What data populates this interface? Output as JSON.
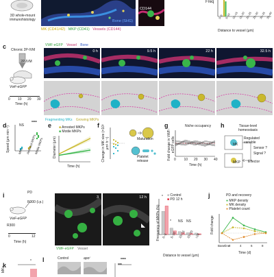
{
  "panel_a": {
    "label": "",
    "line1": "3D whole-mount",
    "line2": "immunohistology",
    "legend_bone": "Bone (SHG)",
    "legend_mk": "MK (CD41/42)",
    "legend_mkp": "MKP (CD41)",
    "legend_vessels": "Vessels (CD144)",
    "inset_label": "CD144",
    "chart_xlabel": "Distance to vessel (μm)",
    "chart_ylabel": "Freq",
    "chart_ticks": [
      "0–5",
      "5–10",
      "10–15",
      "15–20",
      "20–25",
      "25–30",
      "30–35",
      "35–40"
    ]
  },
  "panel_c": {
    "label": "c",
    "schematic_title": "Chronic 2P-IVM",
    "objective": "2P-IVM",
    "mouse": "VwF-eGFP",
    "time_ticks": [
      "0",
      "10",
      "20",
      "30"
    ],
    "time_unit": "Time (h)",
    "legend_vwf": "VWF-eGFP",
    "legend_vessel": "Vessel",
    "legend_bone": "Bone",
    "timepoints": [
      "0 h",
      "9.5 h",
      "22 h",
      "32.5 h"
    ],
    "legend_frag": "Fragmenting MKs",
    "legend_grow": "Growing MKPs"
  },
  "panel_d": {
    "label": "d",
    "ylabel": "Speed (μm min⁻¹)",
    "sig_ns": "NS",
    "sig_star": "****",
    "categories": [
      "MKs",
      "Arrested MKPs",
      "Motile MKPs"
    ]
  },
  "panel_e": {
    "label": "e",
    "legend1": "Arrested MKPs",
    "legend2": "Motile MKPs",
    "ylabel": "Diameter (μm)",
    "xlabel": "Time (h)"
  },
  "panel_f": {
    "label": "f",
    "ylabel": "Change in MK size (×10³ μm³ h⁻¹)",
    "maturation": "Maturation",
    "platelet": "Platelet",
    "release": "release"
  },
  "panel_g": {
    "label": "g",
    "title": "Niche occupancy",
    "ylabel": "Fold change in VWF-eGFP cells",
    "xlabel": "Time (h)",
    "xticks": [
      "0",
      "10",
      "20",
      "30",
      "40"
    ]
  },
  "panel_h": {
    "label": "h",
    "title1": "Tissue-level",
    "title2": "homeostasis",
    "regulated": "Regulated variable",
    "sensor": "Sensor ?",
    "signal": "Signal ?",
    "effector": "Effector",
    "mk": "MK",
    "mkp": "MKP"
  },
  "panel_i": {
    "label": "i",
    "pd": "PD",
    "r300": "R300 (i.p.)",
    "mouse": "VwF-eGFP",
    "r300_short": "R300",
    "time_ticks": [
      "0",
      "12"
    ],
    "time_unit": "Time (h)",
    "tp1": "3",
    "tp2": "12 h",
    "legend_vwf": "VWF-eGFP",
    "legend_vessel": "Vessel",
    "chart_ylabel": "Frequency of MKPs (%)",
    "legend_control": "Control",
    "legend_pd": "PD 12 h",
    "sig": [
      "*",
      "*",
      "NS",
      "NS"
    ],
    "xticks": [
      "0–5",
      "5–10",
      "10–15",
      "15–20",
      ">20"
    ],
    "xlabel": "Distance to vessel (μm)"
  },
  "panel_j": {
    "label": "j",
    "title": "PD and recovery",
    "legend1": "MKP density",
    "legend2": "MK density",
    "legend3": "Platelet count",
    "ylabel": "Fold change",
    "xticks": [
      "Baseline",
      "2",
      "4",
      "6",
      "8"
    ],
    "xlabel": "Time (d)"
  },
  "panel_k": {
    "label": "k",
    "ylabel": "MKs",
    "sig": "*"
  },
  "panel_l": {
    "label": "l",
    "control": "Control",
    "apo": "apoᴵ",
    "sig1": "****",
    "sig2": "***"
  },
  "colors": {
    "green": "#39b54a",
    "magenta": "#d63ca4",
    "blue": "#2d57c6",
    "cyan": "#20b2c6",
    "yellow": "#c9b82c",
    "red": "#e0192c",
    "pink": "#f2a3ac"
  },
  "chart_data": [
    {
      "type": "line",
      "panel": "e",
      "xlabel": "Time (h)",
      "ylabel": "Diameter (μm)",
      "series": [
        {
          "name": "Arrested MKPs",
          "x": [
            0,
            5,
            10,
            15,
            20
          ],
          "y": [
            6,
            9,
            12,
            15,
            18
          ]
        },
        {
          "name": "Motile MKPs",
          "x": [
            0,
            5,
            10,
            15,
            20
          ],
          "y": [
            5,
            6,
            7,
            8,
            9
          ]
        }
      ]
    },
    {
      "type": "line",
      "panel": "g",
      "title": "Niche occupancy",
      "xlabel": "Time (h)",
      "ylabel": "Fold change in VWF-eGFP cells",
      "series": [
        {
          "x": [
            0,
            10,
            20,
            30,
            40
          ],
          "y": [
            1.0,
            1.05,
            1.0,
            0.98,
            1.0
          ]
        }
      ]
    },
    {
      "type": "bar",
      "panel": "i",
      "xlabel": "Distance to vessel (μm)",
      "ylabel": "Frequency of MKPs (%)",
      "categories": [
        "0–5",
        "5–10",
        "10–15",
        "15–20",
        ">20"
      ],
      "series": [
        {
          "name": "Control",
          "values": [
            65,
            18,
            8,
            5,
            4
          ]
        },
        {
          "name": "PD 12 h",
          "values": [
            80,
            10,
            5,
            3,
            2
          ]
        }
      ]
    },
    {
      "type": "line",
      "panel": "j",
      "title": "PD and recovery",
      "xlabel": "Time (d)",
      "ylabel": "Fold change",
      "categories": [
        "Baseline",
        "2",
        "4",
        "6",
        "8"
      ],
      "series": [
        {
          "name": "MKP density",
          "values": [
            1.0,
            2.6,
            1.8,
            1.4,
            1.1
          ]
        },
        {
          "name": "MK density",
          "values": [
            1.0,
            1.6,
            1.5,
            1.2,
            1.0
          ]
        },
        {
          "name": "Platelet count",
          "values": [
            1.0,
            0.3,
            0.6,
            0.9,
            1.0
          ]
        }
      ]
    }
  ]
}
